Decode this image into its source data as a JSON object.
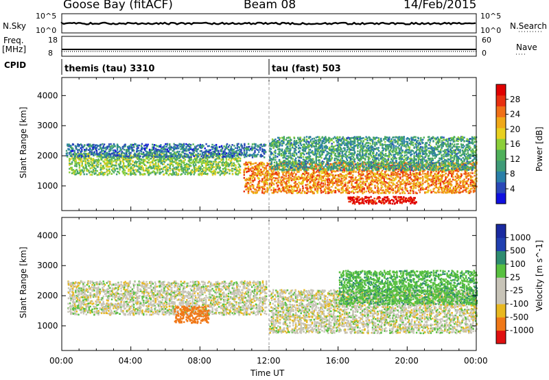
{
  "header": {
    "station": "Goose Bay (fitACF)",
    "beam": "Beam 08",
    "date": "14/Feb/2015"
  },
  "top_panels": {
    "nsky_label": "N.Sky",
    "nsky_ticks": [
      "10^5",
      "10^0"
    ],
    "nsearch_label": "N.Search",
    "nsearch_ticks": [
      "10^5",
      "10^0"
    ],
    "freq_label": "Freq.",
    "freq_unit": "[MHz]",
    "freq_ticks": [
      "18",
      "8"
    ],
    "nave_label": "Nave",
    "nave_ticks": [
      "60",
      "0"
    ],
    "cpid_label": "CPID",
    "cpid_programs": [
      {
        "name": "themis (tau)",
        "id": "3310",
        "start_hour": 0
      },
      {
        "name": "tau (fast)",
        "id": "503",
        "start_hour": 12
      }
    ]
  },
  "chart_data": [
    {
      "type": "heatmap",
      "title": "",
      "xlabel": "",
      "ylabel": "Slant Range [km]",
      "xlim": [
        0,
        24
      ],
      "ylim": [
        180,
        4600
      ],
      "yticks": [
        1000,
        2000,
        3000,
        4000
      ],
      "colorbar": {
        "label": "Power [dB]",
        "ticks": [
          "4",
          "8",
          "12",
          "16",
          "20",
          "24",
          "28"
        ],
        "range": [
          0,
          30
        ]
      },
      "bands": [
        {
          "x_start": 0.4,
          "x_end": 10.3,
          "y_center": 1750,
          "y_width": 450,
          "value_db": 14
        },
        {
          "x_start": 0.2,
          "x_end": 11.8,
          "y_center": 2200,
          "y_width": 280,
          "value_db": 7
        },
        {
          "x_start": 10.5,
          "x_end": 24,
          "y_center": 1300,
          "y_width": 650,
          "value_db": 22
        },
        {
          "x_start": 12,
          "x_end": 24,
          "y_center": 2100,
          "y_width": 700,
          "value_db": 10
        },
        {
          "x_start": 16.5,
          "x_end": 20.5,
          "y_center": 550,
          "y_width": 150,
          "value_db": 29
        }
      ]
    },
    {
      "type": "heatmap",
      "title": "",
      "xlabel": "Time UT",
      "ylabel": "Slant Range [km]",
      "xlim": [
        0,
        24
      ],
      "ylim": [
        180,
        4600
      ],
      "yticks": [
        1000,
        2000,
        3000,
        4000
      ],
      "xtick_labels": [
        "00:00",
        "04:00",
        "08:00",
        "12:00",
        "16:00",
        "20:00",
        "00:00"
      ],
      "colorbar": {
        "label": "Velocity [m s^-1]",
        "ticks": [
          "1000",
          "500",
          "100",
          "25",
          "-25",
          "-100",
          "-500",
          "-1000"
        ]
      },
      "bands": [
        {
          "x_start": 0.3,
          "x_end": 11.8,
          "y_center": 1950,
          "y_width": 700,
          "value_ms": 0
        },
        {
          "x_start": 12,
          "x_end": 24,
          "y_center": 1500,
          "y_width": 900,
          "value_ms": 0
        },
        {
          "x_start": 6.5,
          "x_end": 8.5,
          "y_center": 1400,
          "y_width": 350,
          "value_ms": -150
        },
        {
          "x_start": 16,
          "x_end": 24,
          "y_center": 2300,
          "y_width": 700,
          "value_ms": 80
        }
      ]
    }
  ]
}
